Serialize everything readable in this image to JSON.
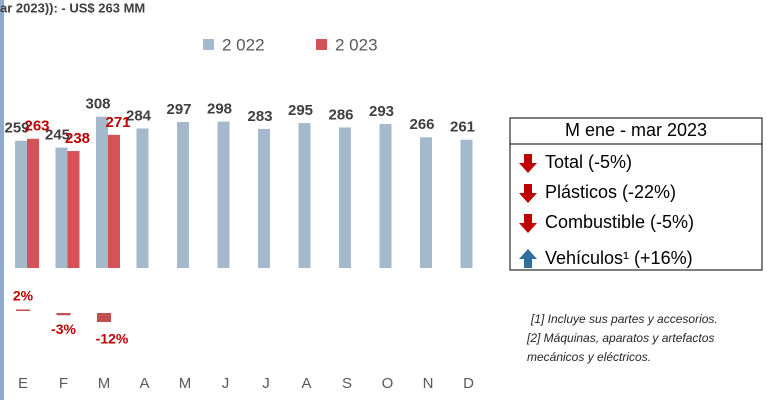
{
  "chart_data": {
    "type": "bar",
    "title": "ar 2023)):  - US$ 263 MM",
    "categories": [
      "E",
      "F",
      "M",
      "A",
      "M",
      "J",
      "J",
      "A",
      "S",
      "O",
      "N",
      "D"
    ],
    "series": [
      {
        "name": "2 022",
        "color": "#a5b9cc",
        "label_color": "#404040",
        "values": [
          259,
          245,
          308,
          284,
          297,
          298,
          283,
          295,
          286,
          293,
          266,
          261
        ]
      },
      {
        "name": "2 023",
        "color": "#d55256",
        "label_color": "#c00000",
        "values": [
          263,
          238,
          271,
          null,
          null,
          null,
          null,
          null,
          null,
          null,
          null,
          null
        ]
      }
    ],
    "ylim": [
      0,
      350
    ],
    "variation": {
      "color": "#c0504d",
      "values": [
        2,
        -3,
        -12
      ],
      "value_labels": [
        "2%",
        "-3%",
        "-12%"
      ]
    },
    "summary": {
      "title": "M ene - mar 2023",
      "items": [
        {
          "text": "Total (-5%)",
          "direction": "down"
        },
        {
          "text": "Plásticos (-22%)",
          "direction": "down"
        },
        {
          "text": "Combustible (-5%)",
          "direction": "down"
        },
        {
          "text": "Vehículos¹ (+16%)",
          "direction": "up"
        }
      ]
    },
    "footnotes": [
      "[1] Incluye sus partes y accesorios.",
      "[2] Máquinas, aparatos y artefactos",
      "mecánicos y eléctricos."
    ]
  }
}
